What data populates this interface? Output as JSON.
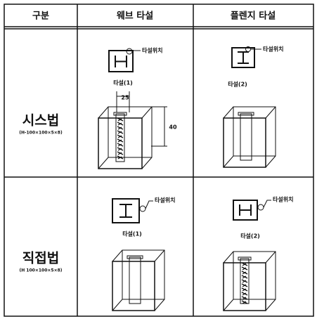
{
  "table": {
    "header": [
      "구분",
      "웨브 타설",
      "플렌지 타설"
    ],
    "rows": [
      {
        "method": "시스법",
        "spec": "(H-100×100×5×8)",
        "web": {
          "position_label": "타설위치",
          "pour_label": "타설(1)",
          "dim_width": "25",
          "dim_height": "40"
        },
        "flange": {
          "position_label": "타설위치",
          "pour_label": "타설(2)"
        }
      },
      {
        "method": "직접법",
        "spec": "(H 100×100×5×8)",
        "web": {
          "position_label": "타설위치",
          "pour_label": "타설(1)"
        },
        "flange": {
          "position_label": "타설위치",
          "pour_label": "타설(2)"
        }
      }
    ]
  }
}
